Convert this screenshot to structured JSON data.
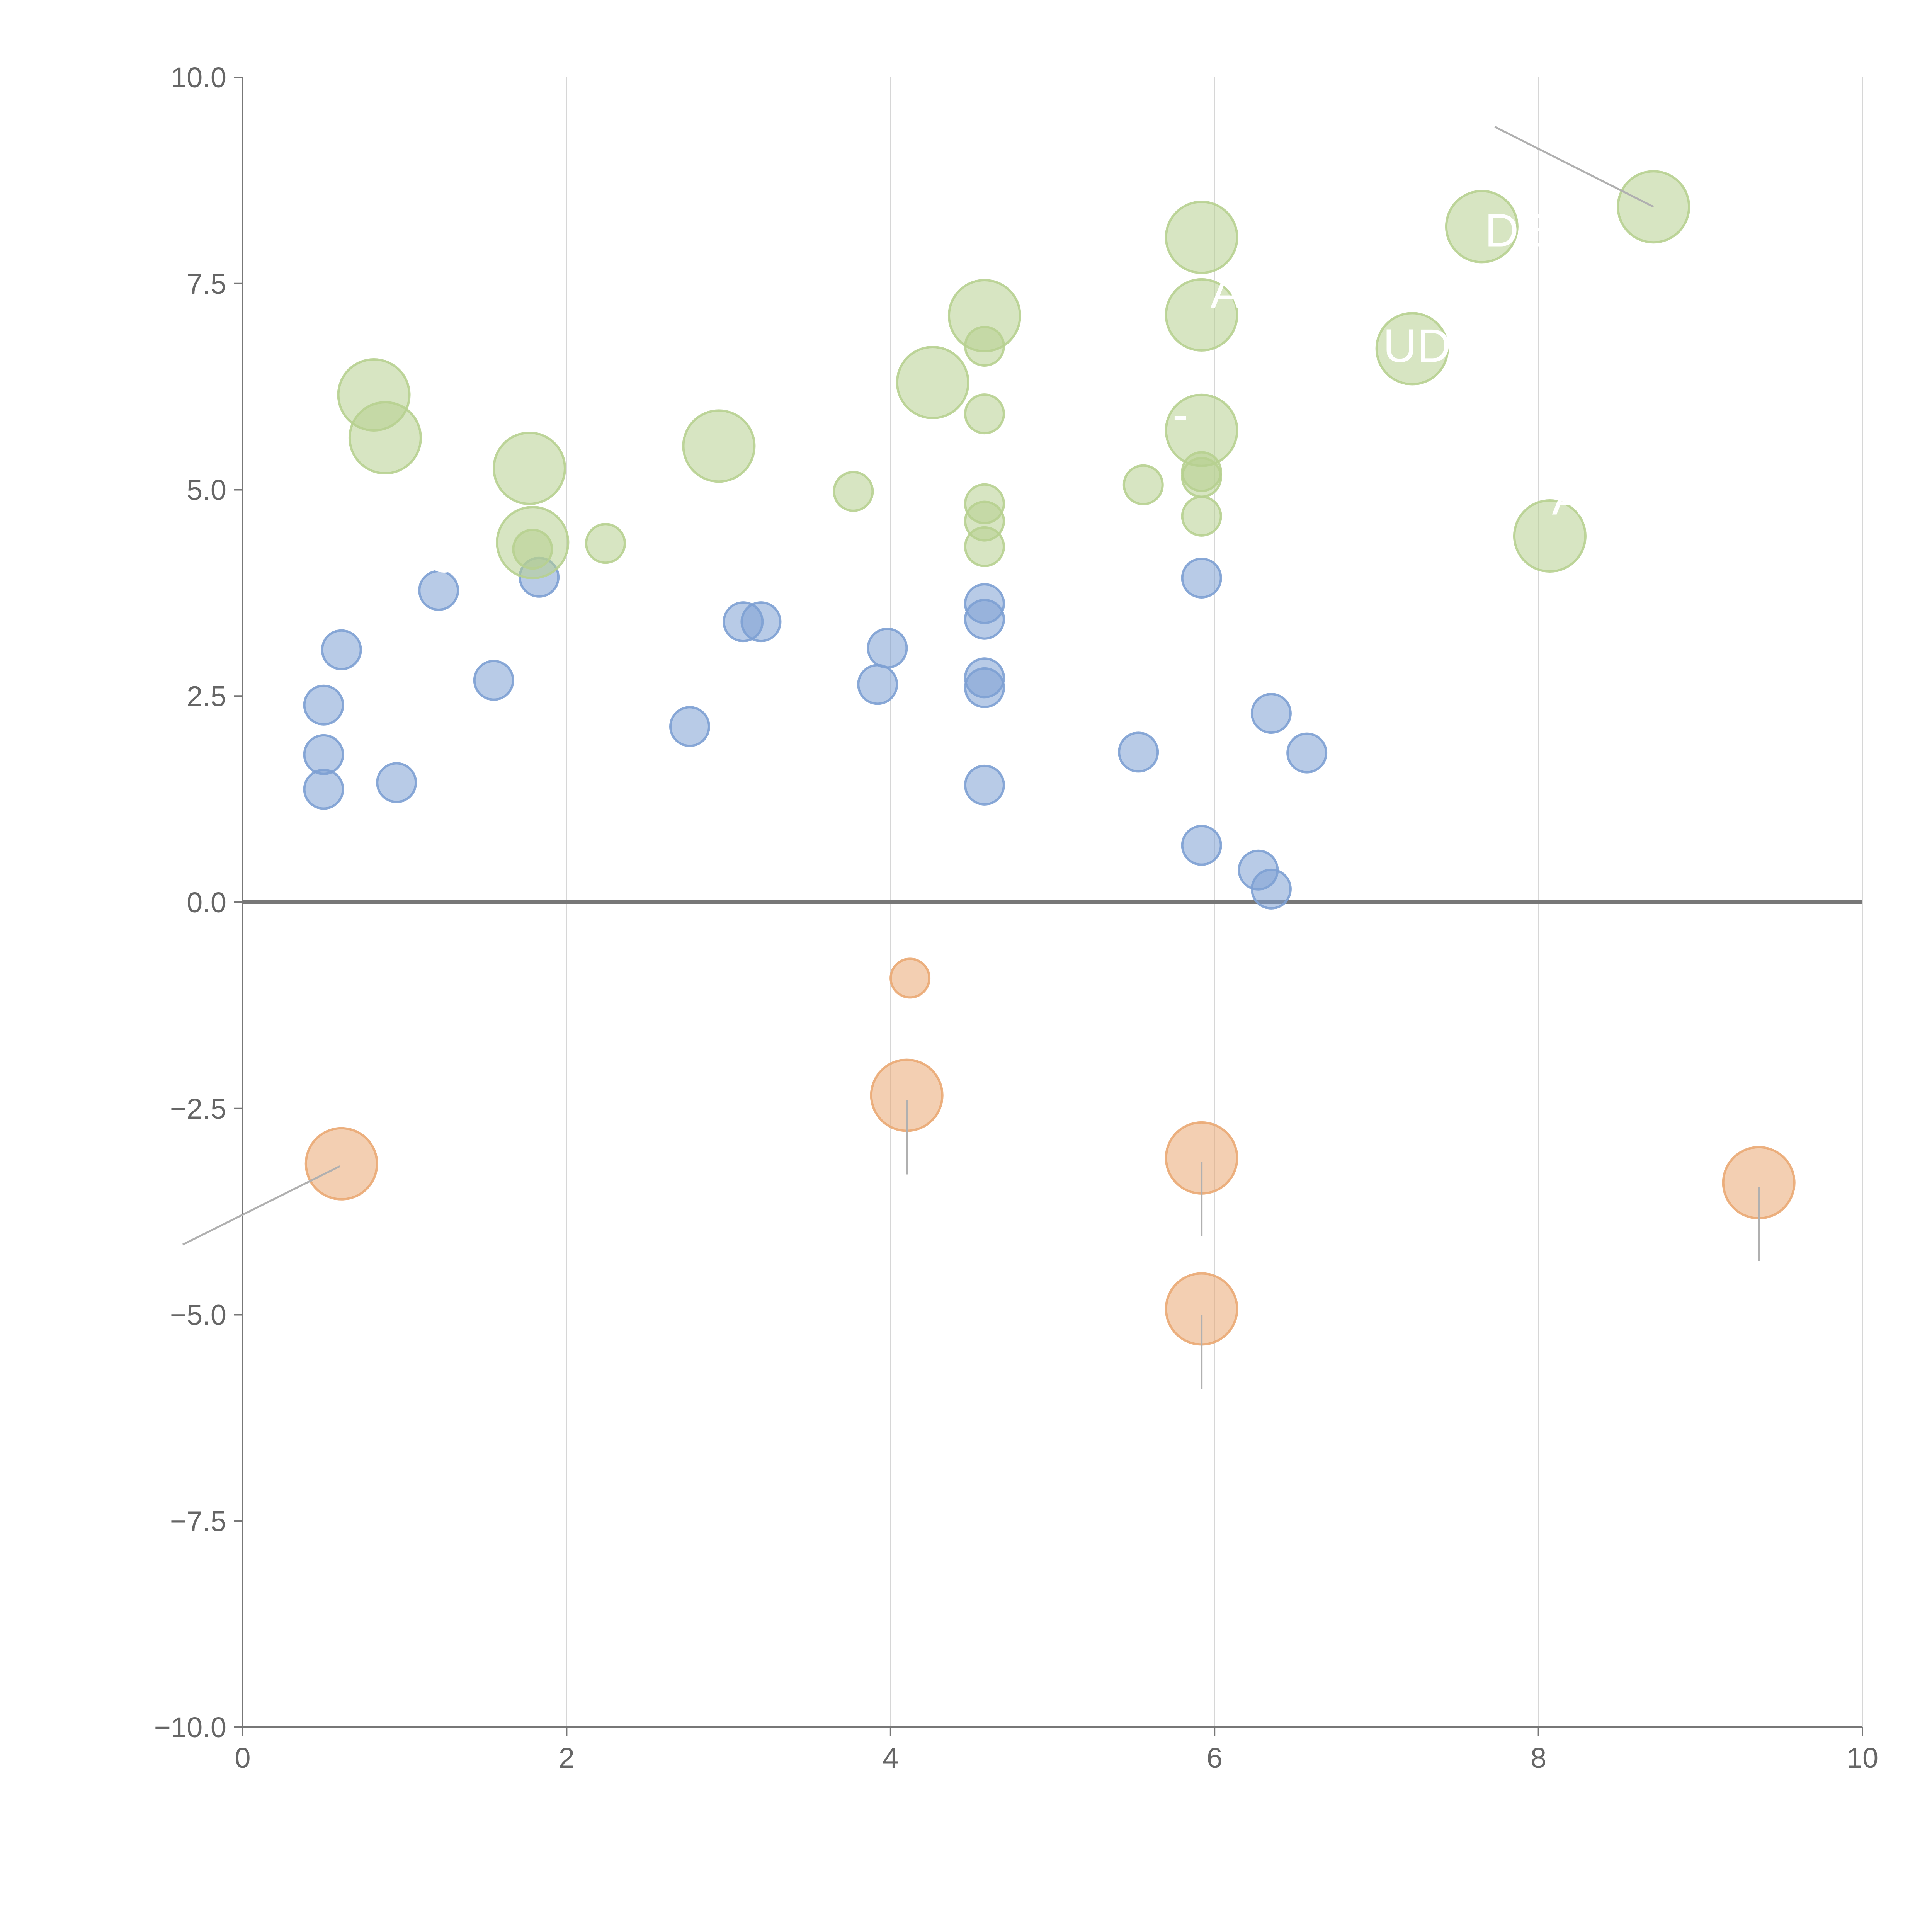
{
  "chart_data": {
    "type": "scatter",
    "title": "",
    "xlabel": "",
    "ylabel": "",
    "xlim": [
      0,
      10
    ],
    "ylim": [
      -10,
      10
    ],
    "x_ticks": [
      0,
      2,
      4,
      6,
      8,
      10
    ],
    "x_tick_labels": [
      "0",
      "2",
      "4",
      "6",
      "8",
      "10"
    ],
    "y_ticks": [
      10,
      7.5,
      5,
      2.5,
      0,
      -2.5,
      -5,
      -7.5,
      -10
    ],
    "y_tick_labels": [
      "10.0",
      "7.5",
      "5.0",
      "2.5",
      "0.0",
      "−2.5",
      "−5.0",
      "−7.5",
      "−10.0"
    ],
    "grid": "vertical",
    "legend": "none",
    "series": [
      {
        "name": "blue",
        "color": "#7da0d3",
        "points": [
          {
            "x": 0.61,
            "y": 3.06,
            "size": 1
          },
          {
            "x": 0.5,
            "y": 2.39,
            "size": 1
          },
          {
            "x": 0.5,
            "y": 1.79,
            "size": 1
          },
          {
            "x": 0.5,
            "y": 1.37,
            "size": 1
          },
          {
            "x": 0.95,
            "y": 1.45,
            "size": 1
          },
          {
            "x": 1.21,
            "y": 3.78,
            "size": 1
          },
          {
            "x": 1.55,
            "y": 2.69,
            "size": 1
          },
          {
            "x": 1.83,
            "y": 3.94,
            "size": 1
          },
          {
            "x": 2.76,
            "y": 2.13,
            "size": 1
          },
          {
            "x": 3.09,
            "y": 3.4,
            "size": 1
          },
          {
            "x": 3.2,
            "y": 3.4,
            "size": 1
          },
          {
            "x": 3.92,
            "y": 2.64,
            "size": 1
          },
          {
            "x": 3.98,
            "y": 3.08,
            "size": 1
          },
          {
            "x": 4.58,
            "y": 3.62,
            "size": 1
          },
          {
            "x": 4.58,
            "y": 3.43,
            "size": 1
          },
          {
            "x": 4.58,
            "y": 2.72,
            "size": 1
          },
          {
            "x": 4.58,
            "y": 2.6,
            "size": 1
          },
          {
            "x": 4.58,
            "y": 1.42,
            "size": 1
          },
          {
            "x": 5.53,
            "y": 1.82,
            "size": 1
          },
          {
            "x": 5.92,
            "y": 3.93,
            "size": 1
          },
          {
            "x": 5.92,
            "y": 0.69,
            "size": 1
          },
          {
            "x": 6.27,
            "y": 0.39,
            "size": 1
          },
          {
            "x": 6.35,
            "y": 0.16,
            "size": 1
          },
          {
            "x": 6.35,
            "y": 2.29,
            "size": 1
          },
          {
            "x": 6.57,
            "y": 1.81,
            "size": 1
          }
        ]
      },
      {
        "name": "green",
        "color": "#b7d090",
        "points": [
          {
            "x": 0.81,
            "y": 6.15,
            "size": 2
          },
          {
            "x": 0.88,
            "y": 5.63,
            "size": 2
          },
          {
            "x": 1.77,
            "y": 5.26,
            "size": 2
          },
          {
            "x": 1.79,
            "y": 4.36,
            "size": 2
          },
          {
            "x": 1.79,
            "y": 4.28,
            "size": 1
          },
          {
            "x": 2.24,
            "y": 4.35,
            "size": 1
          },
          {
            "x": 2.94,
            "y": 5.53,
            "size": 2
          },
          {
            "x": 3.77,
            "y": 4.98,
            "size": 1
          },
          {
            "x": 4.26,
            "y": 6.3,
            "size": 2
          },
          {
            "x": 4.58,
            "y": 7.11,
            "size": 2
          },
          {
            "x": 4.58,
            "y": 6.74,
            "size": 1
          },
          {
            "x": 4.58,
            "y": 5.92,
            "size": 1
          },
          {
            "x": 4.58,
            "y": 4.83,
            "size": 1
          },
          {
            "x": 4.58,
            "y": 4.62,
            "size": 1
          },
          {
            "x": 4.58,
            "y": 4.31,
            "size": 1
          },
          {
            "x": 5.56,
            "y": 5.06,
            "size": 1
          },
          {
            "x": 5.92,
            "y": 8.06,
            "size": 2
          },
          {
            "x": 5.92,
            "y": 7.12,
            "size": 2
          },
          {
            "x": 5.92,
            "y": 5.72,
            "size": 2
          },
          {
            "x": 5.92,
            "y": 5.22,
            "size": 1
          },
          {
            "x": 5.92,
            "y": 5.15,
            "size": 1
          },
          {
            "x": 5.92,
            "y": 4.68,
            "size": 1
          },
          {
            "x": 7.22,
            "y": 6.71,
            "size": 2
          },
          {
            "x": 7.65,
            "y": 8.19,
            "size": 2
          },
          {
            "x": 8.07,
            "y": 4.44,
            "size": 2
          },
          {
            "x": 8.71,
            "y": 8.43,
            "size": 2
          }
        ]
      },
      {
        "name": "orange",
        "color": "#eaa873",
        "points": [
          {
            "x": 0.61,
            "y": -3.17,
            "size": 2
          },
          {
            "x": 4.12,
            "y": -0.92,
            "size": 1
          },
          {
            "x": 4.1,
            "y": -2.34,
            "size": 2
          },
          {
            "x": 5.92,
            "y": -3.1,
            "size": 2
          },
          {
            "x": 5.92,
            "y": -4.93,
            "size": 2
          },
          {
            "x": 9.36,
            "y": -3.4,
            "size": 2
          }
        ]
      }
    ],
    "annotations": [
      {
        "text": "CO",
        "point": [
          1.79,
          4.28
        ],
        "text_at": [
          1.35,
          4.0
        ],
        "line": false
      },
      {
        "text": "A",
        "point": [
          5.92,
          7.12
        ],
        "text_at": [
          6.07,
          7.2
        ],
        "line": false
      },
      {
        "text": "V-",
        "point": [
          5.92,
          5.72
        ],
        "text_at": [
          5.7,
          5.72
        ],
        "line": false
      },
      {
        "text": "UD",
        "point": [
          7.22,
          6.71
        ],
        "text_at": [
          7.25,
          6.55
        ],
        "line": false
      },
      {
        "text": "DE",
        "point": [
          7.65,
          8.19
        ],
        "text_at": [
          7.87,
          7.95
        ],
        "line": false
      },
      {
        "text": "A",
        "point": [
          8.07,
          4.44
        ],
        "text_at": [
          8.18,
          4.7
        ],
        "line": false
      },
      {
        "text": "",
        "point": [
          8.71,
          8.43
        ],
        "text_at": [
          7.73,
          9.4
        ],
        "line": true
      },
      {
        "text": "",
        "point": [
          0.6,
          -3.2
        ],
        "text_at": [
          -0.37,
          -4.15
        ],
        "line": true
      },
      {
        "text": "",
        "point": [
          4.1,
          -2.4
        ],
        "text_at": [
          4.1,
          -3.3
        ],
        "line": true
      },
      {
        "text": "",
        "point": [
          5.92,
          -3.15
        ],
        "text_at": [
          5.92,
          -4.05
        ],
        "line": true
      },
      {
        "text": "",
        "point": [
          5.92,
          -5.0
        ],
        "text_at": [
          5.92,
          -5.9
        ],
        "line": true
      },
      {
        "text": "",
        "point": [
          9.36,
          -3.45
        ],
        "text_at": [
          9.36,
          -4.35
        ],
        "line": true
      }
    ]
  }
}
